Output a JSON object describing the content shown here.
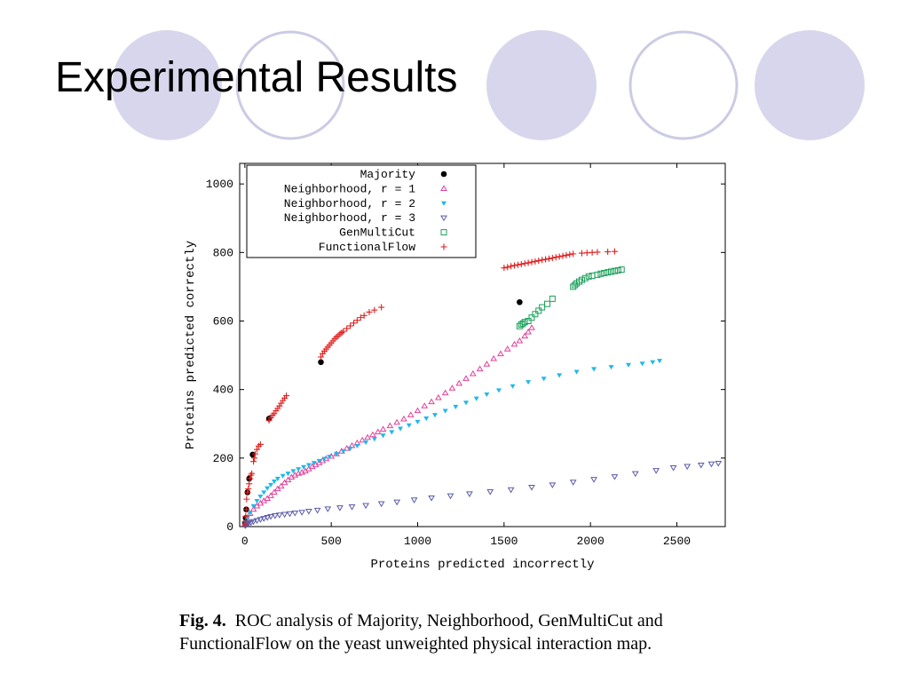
{
  "slide": {
    "title": "Experimental Results",
    "caption_label": "Fig. 4.",
    "caption_text": "ROC analysis of Majority, Neighborhood, GenMultiCut and FunctionalFlow on the yeast unweighted physical interaction map.",
    "decoration_colors": {
      "filled": "#d7d6ec",
      "ring": "#cccbe4"
    }
  },
  "chart_data": {
    "type": "scatter",
    "title": "",
    "xlabel": "Proteins predicted incorrectly",
    "ylabel": "Proteins predicted correctly",
    "xlim": [
      -30,
      2780
    ],
    "ylim": [
      0,
      1060
    ],
    "xticks": [
      0,
      500,
      1000,
      1500,
      2000,
      2500
    ],
    "yticks": [
      0,
      200,
      400,
      600,
      800,
      1000
    ],
    "grid": false,
    "legend_position": "top-left",
    "series": [
      {
        "name": "Majority",
        "marker": "filled-circle",
        "color": "#000000",
        "points": [
          [
            2,
            10
          ],
          [
            5,
            25
          ],
          [
            8,
            50
          ],
          [
            15,
            100
          ],
          [
            25,
            140
          ],
          [
            45,
            210
          ],
          [
            140,
            315
          ],
          [
            440,
            480
          ],
          [
            1590,
            655
          ]
        ]
      },
      {
        "name": "Neighborhood, r = 1",
        "marker": "triangle-up",
        "color": "#e0409a",
        "points": [
          [
            5,
            8
          ],
          [
            15,
            22
          ],
          [
            30,
            38
          ],
          [
            50,
            50
          ],
          [
            70,
            60
          ],
          [
            90,
            68
          ],
          [
            110,
            75
          ],
          [
            130,
            82
          ],
          [
            150,
            90
          ],
          [
            170,
            100
          ],
          [
            190,
            110
          ],
          [
            210,
            118
          ],
          [
            230,
            128
          ],
          [
            250,
            136
          ],
          [
            270,
            144
          ],
          [
            290,
            150
          ],
          [
            310,
            155
          ],
          [
            330,
            158
          ],
          [
            350,
            162
          ],
          [
            370,
            168
          ],
          [
            390,
            175
          ],
          [
            410,
            180
          ],
          [
            430,
            186
          ],
          [
            450,
            192
          ],
          [
            470,
            198
          ],
          [
            500,
            205
          ],
          [
            530,
            212
          ],
          [
            560,
            220
          ],
          [
            590,
            228
          ],
          [
            620,
            236
          ],
          [
            650,
            244
          ],
          [
            680,
            252
          ],
          [
            710,
            260
          ],
          [
            740,
            268
          ],
          [
            770,
            276
          ],
          [
            800,
            284
          ],
          [
            840,
            294
          ],
          [
            880,
            304
          ],
          [
            920,
            314
          ],
          [
            960,
            326
          ],
          [
            1000,
            338
          ],
          [
            1040,
            352
          ],
          [
            1080,
            364
          ],
          [
            1120,
            376
          ],
          [
            1160,
            390
          ],
          [
            1200,
            404
          ],
          [
            1240,
            418
          ],
          [
            1280,
            432
          ],
          [
            1320,
            446
          ],
          [
            1360,
            460
          ],
          [
            1400,
            474
          ],
          [
            1440,
            490
          ],
          [
            1480,
            504
          ],
          [
            1520,
            518
          ],
          [
            1560,
            532
          ],
          [
            1590,
            542
          ],
          [
            1620,
            556
          ],
          [
            1640,
            568
          ],
          [
            1660,
            580
          ]
        ]
      },
      {
        "name": "Neighborhood, r = 2",
        "marker": "triangle-down-filled",
        "color": "#1fb8e8",
        "points": [
          [
            5,
            12
          ],
          [
            15,
            25
          ],
          [
            30,
            40
          ],
          [
            50,
            60
          ],
          [
            70,
            75
          ],
          [
            90,
            88
          ],
          [
            110,
            100
          ],
          [
            130,
            112
          ],
          [
            150,
            122
          ],
          [
            170,
            132
          ],
          [
            190,
            140
          ],
          [
            220,
            148
          ],
          [
            250,
            155
          ],
          [
            280,
            162
          ],
          [
            310,
            168
          ],
          [
            340,
            174
          ],
          [
            370,
            180
          ],
          [
            400,
            186
          ],
          [
            430,
            192
          ],
          [
            460,
            198
          ],
          [
            490,
            204
          ],
          [
            530,
            212
          ],
          [
            570,
            220
          ],
          [
            610,
            228
          ],
          [
            650,
            236
          ],
          [
            700,
            246
          ],
          [
            750,
            256
          ],
          [
            800,
            266
          ],
          [
            850,
            276
          ],
          [
            900,
            286
          ],
          [
            950,
            296
          ],
          [
            1000,
            306
          ],
          [
            1050,
            316
          ],
          [
            1100,
            326
          ],
          [
            1160,
            338
          ],
          [
            1220,
            350
          ],
          [
            1280,
            362
          ],
          [
            1340,
            374
          ],
          [
            1400,
            386
          ],
          [
            1470,
            398
          ],
          [
            1550,
            410
          ],
          [
            1640,
            422
          ],
          [
            1730,
            432
          ],
          [
            1820,
            442
          ],
          [
            1920,
            452
          ],
          [
            2020,
            460
          ],
          [
            2120,
            466
          ],
          [
            2220,
            472
          ],
          [
            2300,
            476
          ],
          [
            2360,
            480
          ],
          [
            2400,
            484
          ]
        ]
      },
      {
        "name": "Neighborhood, r = 3",
        "marker": "triangle-down",
        "color": "#5a5aa8",
        "points": [
          [
            2,
            3
          ],
          [
            10,
            6
          ],
          [
            20,
            9
          ],
          [
            35,
            12
          ],
          [
            50,
            15
          ],
          [
            70,
            18
          ],
          [
            90,
            21
          ],
          [
            110,
            24
          ],
          [
            130,
            27
          ],
          [
            150,
            30
          ],
          [
            175,
            32
          ],
          [
            200,
            34
          ],
          [
            230,
            36
          ],
          [
            260,
            38
          ],
          [
            290,
            40
          ],
          [
            330,
            42
          ],
          [
            370,
            45
          ],
          [
            420,
            48
          ],
          [
            480,
            52
          ],
          [
            550,
            55
          ],
          [
            620,
            58
          ],
          [
            700,
            62
          ],
          [
            790,
            67
          ],
          [
            880,
            72
          ],
          [
            980,
            78
          ],
          [
            1080,
            84
          ],
          [
            1190,
            90
          ],
          [
            1300,
            96
          ],
          [
            1420,
            102
          ],
          [
            1540,
            108
          ],
          [
            1660,
            115
          ],
          [
            1780,
            122
          ],
          [
            1900,
            130
          ],
          [
            2020,
            138
          ],
          [
            2140,
            146
          ],
          [
            2260,
            155
          ],
          [
            2380,
            164
          ],
          [
            2480,
            172
          ],
          [
            2560,
            176
          ],
          [
            2640,
            180
          ],
          [
            2700,
            183
          ],
          [
            2740,
            185
          ]
        ]
      },
      {
        "name": "GenMultiCut",
        "marker": "square",
        "color": "#1aa05a",
        "points": [
          [
            1590,
            585
          ],
          [
            1600,
            590
          ],
          [
            1610,
            593
          ],
          [
            1620,
            597
          ],
          [
            1640,
            600
          ],
          [
            1660,
            610
          ],
          [
            1680,
            620
          ],
          [
            1700,
            630
          ],
          [
            1720,
            640
          ],
          [
            1750,
            650
          ],
          [
            1780,
            665
          ],
          [
            1900,
            700
          ],
          [
            1910,
            705
          ],
          [
            1920,
            710
          ],
          [
            1935,
            715
          ],
          [
            1950,
            720
          ],
          [
            1970,
            725
          ],
          [
            1990,
            730
          ],
          [
            2010,
            732
          ],
          [
            2040,
            735
          ],
          [
            2060,
            738
          ],
          [
            2080,
            740
          ],
          [
            2100,
            742
          ],
          [
            2120,
            744
          ],
          [
            2140,
            746
          ],
          [
            2160,
            748
          ],
          [
            2180,
            750
          ]
        ]
      },
      {
        "name": "FunctionalFlow",
        "marker": "plus",
        "color": "#e02020",
        "points": [
          [
            1,
            5
          ],
          [
            3,
            15
          ],
          [
            5,
            30
          ],
          [
            8,
            50
          ],
          [
            10,
            80
          ],
          [
            15,
            100
          ],
          [
            20,
            110
          ],
          [
            25,
            125
          ],
          [
            30,
            140
          ],
          [
            35,
            150
          ],
          [
            40,
            155
          ],
          [
            50,
            190
          ],
          [
            55,
            200
          ],
          [
            60,
            212
          ],
          [
            70,
            225
          ],
          [
            80,
            235
          ],
          [
            90,
            240
          ],
          [
            140,
            310
          ],
          [
            150,
            318
          ],
          [
            160,
            325
          ],
          [
            170,
            330
          ],
          [
            180,
            338
          ],
          [
            190,
            345
          ],
          [
            200,
            352
          ],
          [
            210,
            360
          ],
          [
            220,
            368
          ],
          [
            230,
            375
          ],
          [
            240,
            382
          ],
          [
            440,
            495
          ],
          [
            450,
            505
          ],
          [
            460,
            512
          ],
          [
            470,
            518
          ],
          [
            480,
            524
          ],
          [
            490,
            530
          ],
          [
            500,
            536
          ],
          [
            510,
            542
          ],
          [
            520,
            548
          ],
          [
            530,
            553
          ],
          [
            540,
            557
          ],
          [
            550,
            562
          ],
          [
            560,
            566
          ],
          [
            570,
            570
          ],
          [
            590,
            578
          ],
          [
            610,
            586
          ],
          [
            630,
            594
          ],
          [
            650,
            602
          ],
          [
            670,
            610
          ],
          [
            690,
            616
          ],
          [
            720,
            626
          ],
          [
            750,
            632
          ],
          [
            790,
            640
          ],
          [
            1500,
            755
          ],
          [
            1520,
            757
          ],
          [
            1540,
            760
          ],
          [
            1560,
            762
          ],
          [
            1580,
            764
          ],
          [
            1600,
            766
          ],
          [
            1620,
            768
          ],
          [
            1640,
            770
          ],
          [
            1660,
            772
          ],
          [
            1680,
            774
          ],
          [
            1700,
            776
          ],
          [
            1720,
            778
          ],
          [
            1740,
            780
          ],
          [
            1760,
            782
          ],
          [
            1780,
            784
          ],
          [
            1800,
            786
          ],
          [
            1820,
            788
          ],
          [
            1840,
            790
          ],
          [
            1860,
            792
          ],
          [
            1880,
            794
          ],
          [
            1900,
            796
          ],
          [
            1950,
            798
          ],
          [
            1980,
            799
          ],
          [
            2010,
            800
          ],
          [
            2040,
            801
          ],
          [
            2100,
            802
          ],
          [
            2140,
            803
          ]
        ]
      }
    ]
  }
}
